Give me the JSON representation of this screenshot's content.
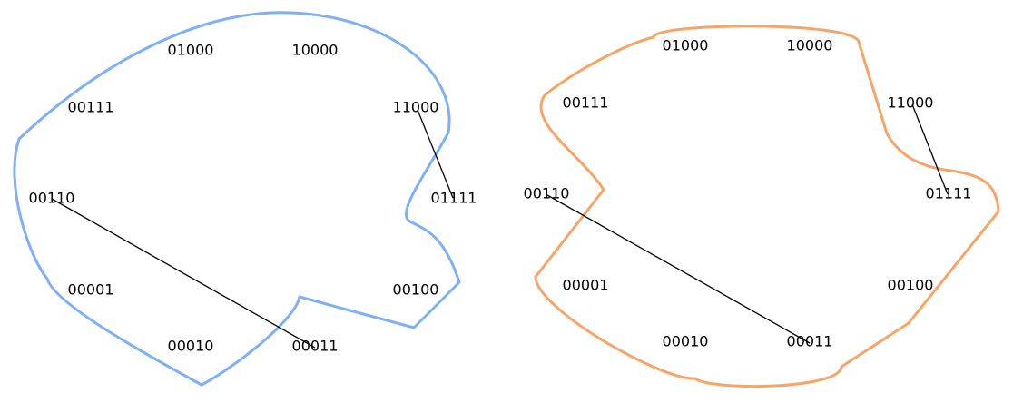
{
  "panels": [
    {
      "curve_color": "#7fb0f7",
      "nodes": [
        {
          "id": "n0",
          "label": "01000"
        },
        {
          "id": "n1",
          "label": "10000"
        },
        {
          "id": "n2",
          "label": "00111"
        },
        {
          "id": "n3",
          "label": "11000"
        },
        {
          "id": "n4",
          "label": "00110"
        },
        {
          "id": "n5",
          "label": "01111"
        },
        {
          "id": "n6",
          "label": "00001"
        },
        {
          "id": "n7",
          "label": "00100"
        },
        {
          "id": "n8",
          "label": "00010"
        },
        {
          "id": "n9",
          "label": "00011"
        }
      ],
      "links": [
        {
          "from": "11000",
          "to": "01111"
        },
        {
          "from": "00110",
          "to": "00011"
        }
      ]
    },
    {
      "curve_color": "#f7a469",
      "nodes": [
        {
          "id": "n0",
          "label": "01000"
        },
        {
          "id": "n1",
          "label": "10000"
        },
        {
          "id": "n2",
          "label": "00111"
        },
        {
          "id": "n3",
          "label": "11000"
        },
        {
          "id": "n4",
          "label": "00110"
        },
        {
          "id": "n5",
          "label": "01111"
        },
        {
          "id": "n6",
          "label": "00001"
        },
        {
          "id": "n7",
          "label": "00100"
        },
        {
          "id": "n8",
          "label": "00010"
        },
        {
          "id": "n9",
          "label": "00011"
        }
      ],
      "links": [
        {
          "from": "11000",
          "to": "01111"
        },
        {
          "from": "00110",
          "to": "00011"
        }
      ]
    }
  ]
}
